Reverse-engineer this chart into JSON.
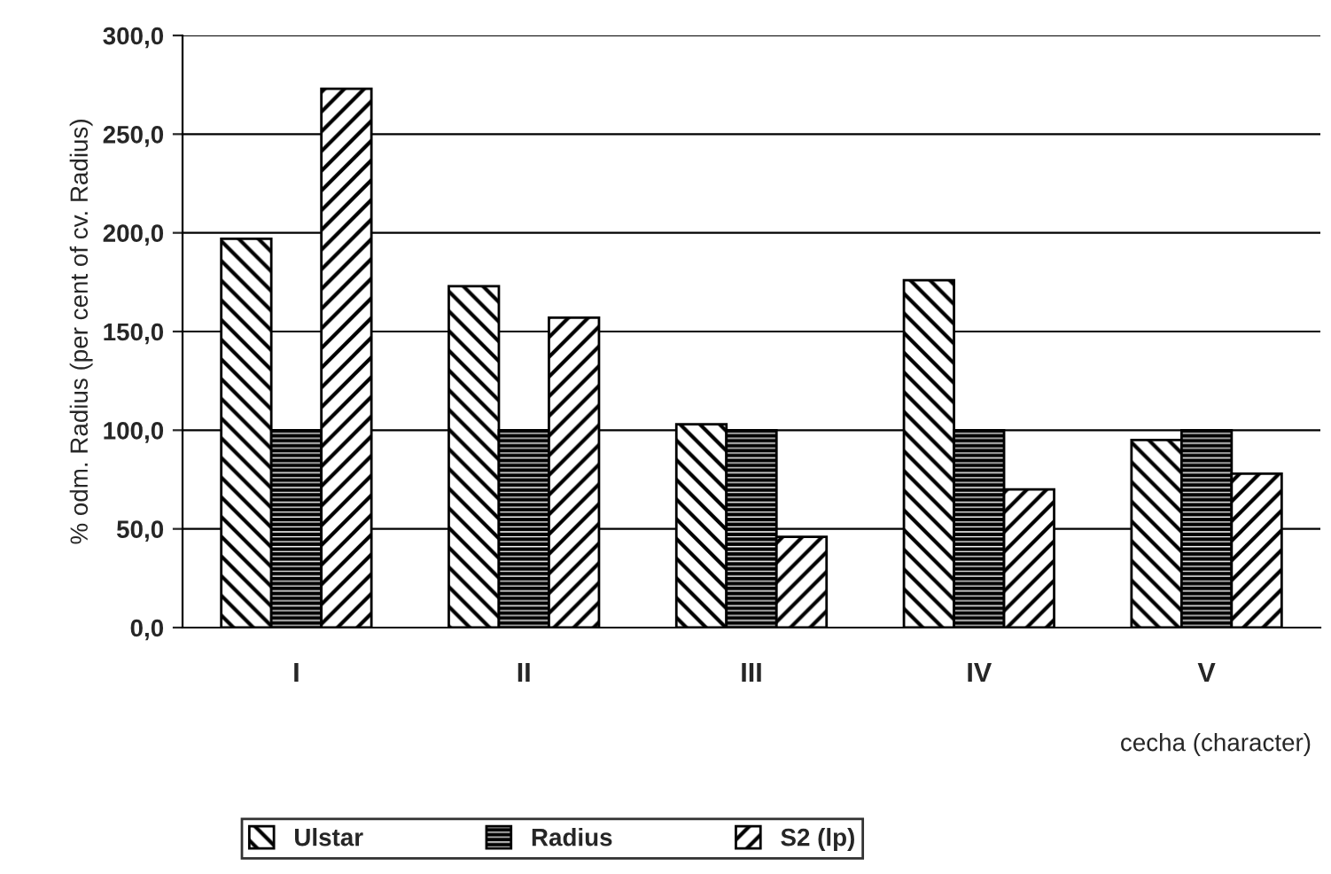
{
  "chart_data": {
    "type": "bar",
    "xlabel": "cecha (character)",
    "ylabel": "% odm. Radius (per cent of cv. Radius)",
    "categories": [
      "I",
      "II",
      "III",
      "IV",
      "V"
    ],
    "series": [
      {
        "name": "Ulstar",
        "color": "#000000",
        "values": [
          197,
          173,
          103,
          176,
          95
        ]
      },
      {
        "name": "Radius",
        "color": "#000000",
        "values": [
          100,
          100,
          100,
          100,
          100
        ]
      },
      {
        "name": "S2 (lp)",
        "color": "#000000",
        "values": [
          273,
          157,
          46,
          70,
          78
        ]
      }
    ],
    "ylim": [
      0,
      300
    ],
    "yticks": [
      {
        "value": 0,
        "label": "0,0"
      },
      {
        "value": 50,
        "label": "50,0"
      },
      {
        "value": 100,
        "label": "100,0"
      },
      {
        "value": 150,
        "label": "150,0"
      },
      {
        "value": 200,
        "label": "200,0"
      },
      {
        "value": 250,
        "label": "250,0"
      },
      {
        "value": 300,
        "label": "300,0"
      }
    ],
    "grid": "y",
    "legend": "bottom"
  }
}
